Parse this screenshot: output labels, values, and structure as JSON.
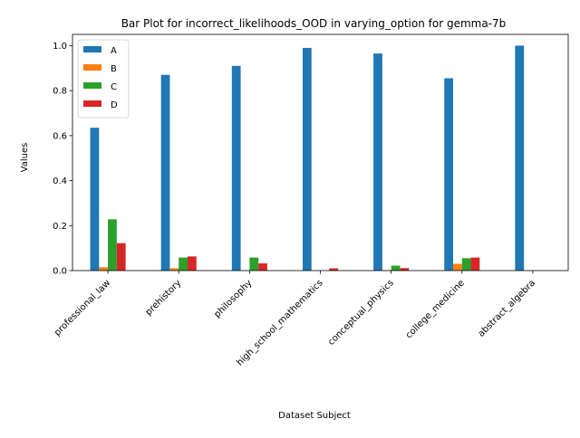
{
  "chart_data": {
    "type": "bar",
    "title": "Bar Plot for incorrect_likelihoods_OOD in varying_option for gemma-7b",
    "xlabel": "Dataset Subject",
    "ylabel": "Values",
    "ylim": [
      0,
      1.05
    ],
    "yticks": [
      "0.0",
      "0.2",
      "0.4",
      "0.6",
      "0.8",
      "1.0"
    ],
    "grid": false,
    "legend_position": "top-left",
    "categories": [
      "professional_law",
      "prehistory",
      "philosophy",
      "high_school_mathematics",
      "conceptual_physics",
      "college_medicine",
      "abstract_algebra"
    ],
    "series": [
      {
        "name": "A",
        "color": "#1f77b4",
        "values": [
          0.635,
          0.87,
          0.91,
          0.99,
          0.965,
          0.855,
          1.0
        ]
      },
      {
        "name": "B",
        "color": "#ff7f0e",
        "values": [
          0.015,
          0.01,
          0.0,
          0.0,
          0.002,
          0.03,
          0.0
        ]
      },
      {
        "name": "C",
        "color": "#2ca02c",
        "values": [
          0.228,
          0.058,
          0.058,
          0.0,
          0.022,
          0.055,
          0.0
        ]
      },
      {
        "name": "D",
        "color": "#d62728",
        "values": [
          0.122,
          0.063,
          0.032,
          0.01,
          0.011,
          0.058,
          0.0
        ]
      }
    ]
  }
}
